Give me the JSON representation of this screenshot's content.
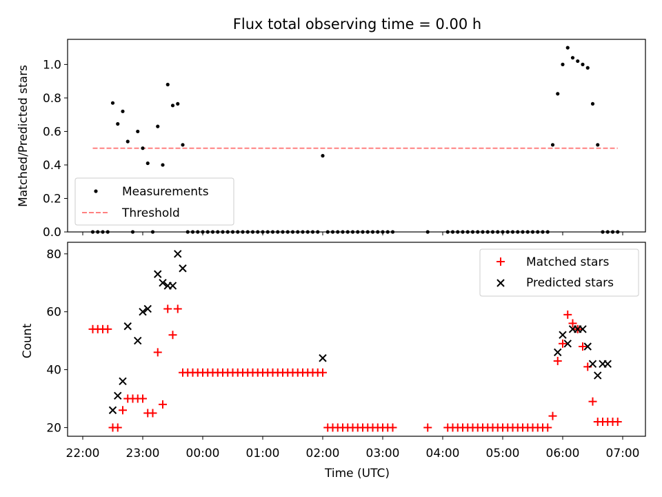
{
  "chart_data": [
    {
      "type": "scatter",
      "title": "Flux total observing time = 0.00 h",
      "xlabel": "",
      "ylabel": "Matched/Predicted stars",
      "ylim": [
        0,
        1.15
      ],
      "yticks": [
        "0.0",
        "0.2",
        "0.4",
        "0.6",
        "0.8",
        "1.0"
      ],
      "ytick_values": [
        0,
        0.2,
        0.4,
        0.6,
        0.8,
        1.0
      ],
      "legend_position": "lower-left",
      "series": [
        {
          "name": "Measurements",
          "color": "#000000",
          "marker": "dot",
          "x": [
            "22:10",
            "22:15",
            "22:20",
            "22:25",
            "22:30",
            "22:35",
            "22:40",
            "22:45",
            "22:50",
            "22:55",
            "23:00",
            "23:05",
            "23:10",
            "23:15",
            "23:20",
            "23:25",
            "23:30",
            "23:35",
            "23:40",
            "23:45",
            "23:50",
            "23:55",
            "00:00",
            "00:05",
            "00:10",
            "00:15",
            "00:20",
            "00:25",
            "00:30",
            "00:35",
            "00:40",
            "00:45",
            "00:50",
            "00:55",
            "01:00",
            "01:05",
            "01:10",
            "01:15",
            "01:20",
            "01:25",
            "01:30",
            "01:35",
            "01:40",
            "01:45",
            "01:50",
            "01:55",
            "02:00",
            "02:05",
            "02:10",
            "02:15",
            "02:20",
            "02:25",
            "02:30",
            "02:35",
            "02:40",
            "02:45",
            "02:50",
            "02:55",
            "03:00",
            "03:05",
            "03:10",
            "03:45",
            "04:05",
            "04:10",
            "04:15",
            "04:20",
            "04:25",
            "04:30",
            "04:35",
            "04:40",
            "04:45",
            "04:50",
            "04:55",
            "05:00",
            "05:05",
            "05:10",
            "05:15",
            "05:20",
            "05:25",
            "05:30",
            "05:35",
            "05:40",
            "05:45",
            "05:50",
            "05:55",
            "06:00",
            "06:05",
            "06:10",
            "06:15",
            "06:20",
            "06:25",
            "06:30",
            "06:35",
            "06:40",
            "06:45",
            "06:50",
            "06:55"
          ],
          "y": [
            0,
            0,
            0,
            0,
            0.77,
            0.645,
            0.72,
            0.54,
            0,
            0.6,
            0.5,
            0.41,
            0,
            0.63,
            0.4,
            0.88,
            0.755,
            0.765,
            0.52,
            0,
            0,
            0,
            0,
            0,
            0,
            0,
            0,
            0,
            0,
            0,
            0,
            0,
            0,
            0,
            0,
            0,
            0,
            0,
            0,
            0,
            0,
            0,
            0,
            0,
            0,
            0,
            0.455,
            0,
            0,
            0,
            0,
            0,
            0,
            0,
            0,
            0,
            0,
            0,
            0,
            0,
            0,
            0,
            0,
            0,
            0,
            0,
            0,
            0,
            0,
            0,
            0,
            0,
            0,
            0,
            0,
            0,
            0,
            0,
            0,
            0,
            0,
            0,
            0,
            0.52,
            0.825,
            1.0,
            1.1,
            1.04,
            1.02,
            1.0,
            0.98,
            0.765,
            0.52,
            0,
            0,
            0,
            0
          ]
        },
        {
          "name": "Threshold",
          "color": "#ff8080",
          "style": "dashed",
          "x": [
            "22:10",
            "06:55"
          ],
          "y": [
            0.5,
            0.5
          ]
        }
      ]
    },
    {
      "type": "scatter",
      "title": "",
      "xlabel": "Time (UTC)",
      "ylabel": "Count",
      "ylim": [
        17,
        84
      ],
      "yticks": [
        "20",
        "40",
        "60",
        "80"
      ],
      "ytick_values": [
        20,
        40,
        60,
        80
      ],
      "xticks": [
        "22:00",
        "23:00",
        "00:00",
        "01:00",
        "02:00",
        "03:00",
        "04:00",
        "05:00",
        "06:00",
        "07:00"
      ],
      "legend_position": "top-right",
      "series": [
        {
          "name": "Matched stars",
          "color": "#ff0000",
          "marker": "plus",
          "x": [
            "22:10",
            "22:15",
            "22:20",
            "22:25",
            "22:30",
            "22:35",
            "22:40",
            "22:45",
            "22:50",
            "22:55",
            "23:00",
            "23:05",
            "23:10",
            "23:15",
            "23:20",
            "23:25",
            "23:30",
            "23:35",
            "23:40",
            "23:45",
            "23:50",
            "23:55",
            "00:00",
            "00:05",
            "00:10",
            "00:15",
            "00:20",
            "00:25",
            "00:30",
            "00:35",
            "00:40",
            "00:45",
            "00:50",
            "00:55",
            "01:00",
            "01:05",
            "01:10",
            "01:15",
            "01:20",
            "01:25",
            "01:30",
            "01:35",
            "01:40",
            "01:45",
            "01:50",
            "01:55",
            "02:00",
            "02:05",
            "02:10",
            "02:15",
            "02:20",
            "02:25",
            "02:30",
            "02:35",
            "02:40",
            "02:45",
            "02:50",
            "02:55",
            "03:00",
            "03:05",
            "03:10",
            "03:45",
            "04:05",
            "04:10",
            "04:15",
            "04:20",
            "04:25",
            "04:30",
            "04:35",
            "04:40",
            "04:45",
            "04:50",
            "04:55",
            "05:00",
            "05:05",
            "05:10",
            "05:15",
            "05:20",
            "05:25",
            "05:30",
            "05:35",
            "05:40",
            "05:45",
            "05:50",
            "05:55",
            "06:00",
            "06:05",
            "06:10",
            "06:15",
            "06:20",
            "06:25",
            "06:30",
            "06:35",
            "06:40",
            "06:45",
            "06:50",
            "06:55"
          ],
          "y": [
            54,
            54,
            54,
            54,
            20,
            20,
            26,
            30,
            30,
            30,
            30,
            25,
            25,
            46,
            28,
            61,
            52,
            61,
            39,
            39,
            39,
            39,
            39,
            39,
            39,
            39,
            39,
            39,
            39,
            39,
            39,
            39,
            39,
            39,
            39,
            39,
            39,
            39,
            39,
            39,
            39,
            39,
            39,
            39,
            39,
            39,
            39,
            20,
            20,
            20,
            20,
            20,
            20,
            20,
            20,
            20,
            20,
            20,
            20,
            20,
            20,
            20,
            20,
            20,
            20,
            20,
            20,
            20,
            20,
            20,
            20,
            20,
            20,
            20,
            20,
            20,
            20,
            20,
            20,
            20,
            20,
            20,
            20,
            24,
            43,
            49,
            59,
            56,
            54,
            48,
            41,
            29,
            22,
            22,
            22,
            22,
            22
          ]
        },
        {
          "name": "Predicted stars",
          "color": "#000000",
          "marker": "x",
          "x": [
            "22:30",
            "22:35",
            "22:40",
            "22:45",
            "22:55",
            "23:00",
            "23:05",
            "23:15",
            "23:20",
            "23:25",
            "23:30",
            "23:35",
            "23:40",
            "02:00",
            "05:55",
            "06:00",
            "06:05",
            "06:10",
            "06:15",
            "06:20",
            "06:25",
            "06:30",
            "06:35",
            "06:40",
            "06:45"
          ],
          "y": [
            26,
            31,
            36,
            55,
            50,
            60,
            61,
            73,
            70,
            69,
            69,
            80,
            75,
            44,
            46,
            52,
            49,
            54,
            54,
            54,
            48,
            42,
            38,
            42,
            42
          ]
        }
      ]
    }
  ]
}
